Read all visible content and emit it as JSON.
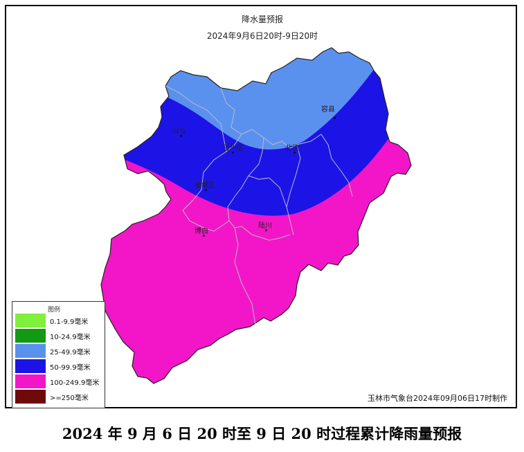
{
  "map": {
    "title": "降水量预报",
    "period": "2024年9月6日20时-9日20时",
    "credit": "玉林市气象台2024年09月06日17时制作",
    "colors": {
      "band_25_49": "#5b91ee",
      "band_50_99": "#1c14e6",
      "band_100_249": "#f216c8",
      "border": "#b9bbc6"
    },
    "places": [
      {
        "name": "容县"
      },
      {
        "name": "兴业"
      },
      {
        "name": "玉州区"
      },
      {
        "name": "北流"
      },
      {
        "name": "福绵区"
      },
      {
        "name": "博白"
      },
      {
        "name": "陆川"
      }
    ]
  },
  "legend": {
    "title": "图例",
    "items": [
      {
        "label": "0.1-9.9毫米",
        "color": "#80f03c"
      },
      {
        "label": "10-24.9毫米",
        "color": "#129a12"
      },
      {
        "label": "25-49.9毫米",
        "color": "#5b91ee"
      },
      {
        "label": "50-99.9毫米",
        "color": "#1c14e6"
      },
      {
        "label": "100-249.9毫米",
        "color": "#f216c8"
      },
      {
        "label": ">=250毫米",
        "color": "#6e0a0a"
      }
    ]
  },
  "caption": "2024 年 9 月 6 日 20 时至 9 日 20 时过程累计降雨量预报"
}
